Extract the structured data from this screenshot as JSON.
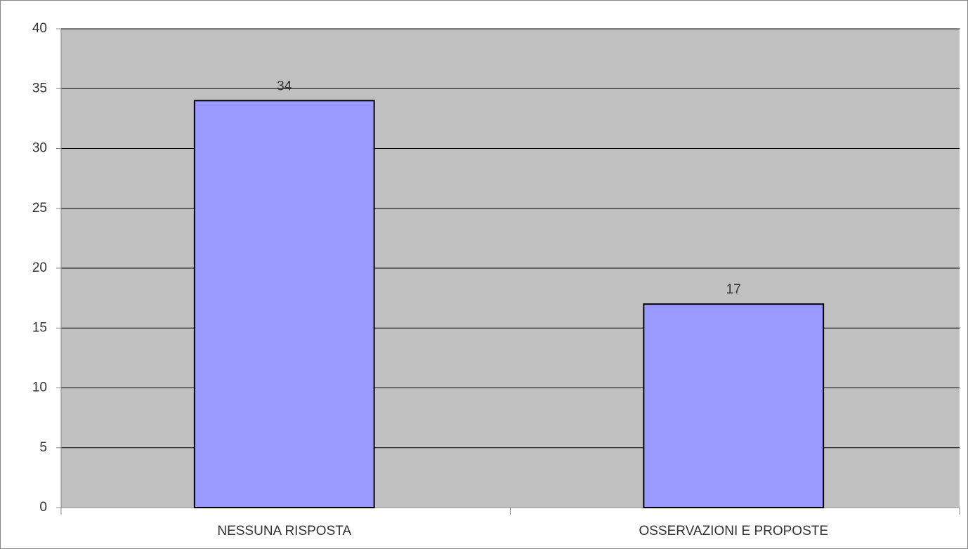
{
  "chart_data": {
    "type": "bar",
    "categories": [
      "NESSUNA RISPOSTA",
      "OSSERVAZIONI E PROPOSTE"
    ],
    "values": [
      34,
      17
    ],
    "color": "#9999ff",
    "ylim": [
      0,
      40
    ],
    "yticks": [
      0,
      5,
      10,
      15,
      20,
      25,
      30,
      35,
      40
    ],
    "grid": true,
    "data_labels": true
  }
}
